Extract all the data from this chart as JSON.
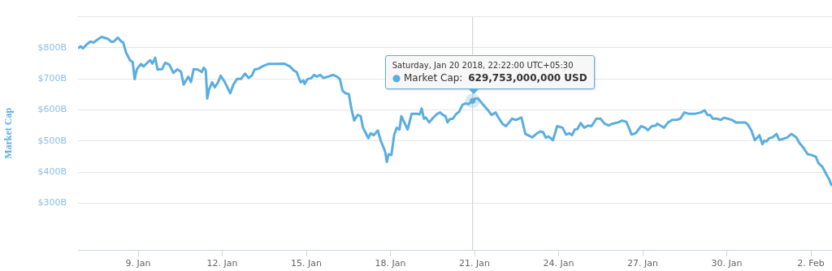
{
  "chart_data": {
    "type": "line",
    "ylabel": "Market Cap",
    "color": "#5aaedf",
    "x": [
      "2018-01-06T20:30",
      "2018-01-06T22:50",
      "2018-01-07T00:40",
      "2018-01-07T03:30",
      "2018-01-07T07:00",
      "2018-01-07T09:45",
      "2018-01-07T12:45",
      "2018-01-07T16:40",
      "2018-01-07T20:10",
      "2018-01-07T22:00",
      "2018-01-08T01:15",
      "2018-01-08T03:10",
      "2018-01-08T06:35",
      "2018-01-08T09:20",
      "2018-01-08T11:15",
      "2018-01-08T13:35",
      "2018-01-08T17:00",
      "2018-01-08T19:20",
      "2018-01-08T21:00",
      "2018-01-08T22:50",
      "2018-01-09T02:20",
      "2018-01-09T04:40",
      "2018-01-09T08:05",
      "2018-01-09T10:25",
      "2018-01-09T12:15",
      "2018-01-09T14:35",
      "2018-01-09T16:40",
      "2018-01-09T20:25",
      "2018-01-09T23:10",
      "2018-01-10T02:40",
      "2018-01-10T06:10",
      "2018-01-10T09:40",
      "2018-01-10T12:40",
      "2018-01-10T14:55",
      "2018-01-10T18:55",
      "2018-01-10T21:15",
      "2018-01-10T23:30",
      "2018-01-11T03:00",
      "2018-01-11T06:30",
      "2018-01-11T08:10",
      "2018-01-11T09:55",
      "2018-01-11T11:10",
      "2018-01-11T12:45",
      "2018-01-11T15:20",
      "2018-01-11T17:35",
      "2018-01-11T20:25",
      "2018-01-11T22:40",
      "2018-01-12T02:10",
      "2018-01-12T06:50",
      "2018-01-12T09:35",
      "2018-01-12T12:40",
      "2018-01-12T16:05",
      "2018-01-12T19:35",
      "2018-01-12T22:35",
      "2018-01-13T01:25",
      "2018-01-13T03:40",
      "2018-01-13T07:10",
      "2018-01-13T10:40",
      "2018-01-13T15:20",
      "2018-01-13T20:00",
      "2018-01-14T05:00",
      "2018-01-14T09:55",
      "2018-01-14T13:20",
      "2018-01-14T15:40",
      "2018-01-14T19:10",
      "2018-01-14T21:25",
      "2018-01-14T22:35",
      "2018-01-15T00:55",
      "2018-01-15T04:25",
      "2018-01-15T06:40",
      "2018-01-15T09:00",
      "2018-01-15T11:50",
      "2018-01-15T14:50",
      "2018-01-15T18:20",
      "2018-01-15T22:55",
      "2018-01-16T02:25",
      "2018-01-16T04:45",
      "2018-01-16T07:05",
      "2018-01-16T09:25",
      "2018-01-16T12:25",
      "2018-01-16T14:45",
      "2018-01-16T17:00",
      "2018-01-16T19:50",
      "2018-01-16T22:35",
      "2018-01-17T00:30",
      "2018-01-17T02:45",
      "2018-01-17T05:05",
      "2018-01-17T07:00",
      "2018-01-17T09:45",
      "2018-01-17T13:15",
      "2018-01-17T15:35",
      "2018-01-17T17:50",
      "2018-01-17T19:30",
      "2018-01-17T20:55",
      "2018-01-17T22:30",
      "2018-01-18T00:50",
      "2018-01-18T03:10",
      "2018-01-18T05:25",
      "2018-01-18T07:45",
      "2018-01-18T09:20",
      "2018-01-18T12:25",
      "2018-01-18T14:45",
      "2018-01-18T18:10",
      "2018-01-18T22:50",
      "2018-01-19T01:10",
      "2018-01-19T02:45",
      "2018-01-19T04:40",
      "2018-01-19T06:15",
      "2018-01-19T09:15",
      "2018-01-19T12:45",
      "2018-01-19T16:15",
      "2018-01-19T18:35",
      "2018-01-19T20:50",
      "2018-01-19T23:10",
      "2018-01-20T00:50",
      "2018-01-20T02:40",
      "2018-01-20T05:25",
      "2018-01-20T08:30",
      "2018-01-20T10:45",
      "2018-01-20T13:45",
      "2018-01-20T16:10",
      "2018-01-20T18:55",
      "2018-01-20T22:22",
      "2018-01-21T00:30",
      "2018-01-21T03:00",
      "2018-01-21T06:30",
      "2018-01-21T11:10",
      "2018-01-21T14:35",
      "2018-01-21T18:05",
      "2018-01-21T20:25",
      "2018-01-21T23:50",
      "2018-01-22T02:55",
      "2018-01-22T05:40",
      "2018-01-22T08:00",
      "2018-01-22T11:30",
      "2018-01-22T16:10",
      "2018-01-22T19:35",
      "2018-01-22T21:55",
      "2018-01-23T01:25",
      "2018-01-23T04:50",
      "2018-01-23T08:20",
      "2018-01-23T10:40",
      "2018-01-23T13:00",
      "2018-01-23T15:20",
      "2018-01-23T19:10",
      "2018-01-23T22:45",
      "2018-01-24T03:20",
      "2018-01-24T06:25",
      "2018-01-24T09:10",
      "2018-01-24T11:30",
      "2018-01-24T13:50",
      "2018-01-24T16:10",
      "2018-01-24T18:55",
      "2018-01-24T21:55",
      "2018-01-25T01:25",
      "2018-01-25T04:10",
      "2018-01-25T08:20",
      "2018-01-25T11:50",
      "2018-01-25T15:20",
      "2018-01-25T18:50",
      "2018-01-25T22:15",
      "2018-01-26T02:55",
      "2018-01-26T06:25",
      "2018-01-26T09:55",
      "2018-01-26T12:10",
      "2018-01-26T14:30",
      "2018-01-26T17:55",
      "2018-01-26T22:35",
      "2018-01-27T02:05",
      "2018-01-27T04:25",
      "2018-01-27T07:50",
      "2018-01-27T11:20",
      "2018-01-27T12:30",
      "2018-01-27T16:00",
      "2018-01-27T18:15",
      "2018-01-27T21:45",
      "2018-01-28T01:15",
      "2018-01-28T04:45",
      "2018-01-28T08:10",
      "2018-01-28T11:40",
      "2018-01-28T15:10",
      "2018-01-28T21:00",
      "2018-01-29T01:40",
      "2018-01-29T05:05",
      "2018-01-29T07:25",
      "2018-01-29T09:45",
      "2018-01-29T12:05",
      "2018-01-29T15:30",
      "2018-01-29T19:00",
      "2018-01-29T21:20",
      "2018-01-30T00:50",
      "2018-01-30T04:20",
      "2018-01-30T07:50",
      "2018-01-30T12:25",
      "2018-01-30T15:55",
      "2018-01-30T18:15",
      "2018-01-30T21:00",
      "2018-01-31T00:00",
      "2018-01-31T02:20",
      "2018-01-31T03:55",
      "2018-01-31T06:30",
      "2018-01-31T08:10",
      "2018-01-31T09:55",
      "2018-01-31T12:15",
      "2018-01-31T15:05",
      "2018-01-31T18:35",
      "2018-01-31T20:50",
      "2018-02-01T00:20",
      "2018-02-01T03:50",
      "2018-02-01T07:15",
      "2018-02-01T11:30",
      "2018-02-01T14:15",
      "2018-02-01T17:45",
      "2018-02-01T21:15",
      "2018-02-02T00:40",
      "2018-02-02T04:10",
      "2018-02-02T06:30",
      "2018-02-02T09:55",
      "2018-02-02T13:25",
      "2018-02-02T15:45",
      "2018-02-02T17:50"
    ],
    "values": [
      798,
      805,
      798,
      809,
      820,
      817,
      825,
      835,
      831,
      829,
      819,
      820,
      833,
      821,
      817,
      785,
      760,
      754,
      699,
      731,
      748,
      740,
      753,
      760,
      749,
      768,
      730,
      731,
      752,
      746,
      719,
      731,
      723,
      682,
      707,
      690,
      731,
      730,
      722,
      736,
      727,
      637,
      666,
      689,
      673,
      689,
      710,
      690,
      654,
      682,
      700,
      700,
      717,
      703,
      711,
      730,
      733,
      741,
      748,
      748,
      749,
      740,
      727,
      722,
      689,
      695,
      684,
      699,
      703,
      713,
      707,
      713,
      703,
      707,
      713,
      707,
      699,
      662,
      654,
      651,
      601,
      566,
      584,
      580,
      543,
      527,
      509,
      525,
      519,
      534,
      503,
      482,
      466,
      433,
      458,
      455,
      519,
      543,
      537,
      580,
      556,
      537,
      588,
      588,
      586,
      605,
      572,
      576,
      560,
      576,
      588,
      592,
      584,
      580,
      560,
      570,
      572,
      588,
      594,
      617,
      621,
      619,
      629.753,
      637,
      637,
      621,
      601,
      584,
      592,
      576,
      556,
      548,
      560,
      572,
      568,
      576,
      523,
      519,
      512,
      523,
      531,
      529,
      511,
      515,
      503,
      548,
      543,
      521,
      525,
      519,
      537,
      539,
      558,
      543,
      550,
      548,
      572,
      572,
      556,
      550,
      556,
      560,
      566,
      562,
      543,
      521,
      525,
      548,
      543,
      535,
      548,
      550,
      556,
      548,
      543,
      560,
      568,
      568,
      572,
      592,
      588,
      588,
      592,
      599,
      584,
      584,
      572,
      572,
      568,
      575,
      572,
      568,
      560,
      560,
      560,
      552,
      535,
      503,
      512,
      519,
      490,
      501,
      499,
      509,
      512,
      523,
      504,
      507,
      512,
      523,
      512,
      494,
      478,
      458,
      455,
      450,
      429,
      417,
      392,
      376,
      356
    ],
    "xlim": [
      "2018-01-06T20:30",
      "2018-02-02T18:05"
    ],
    "xticks": [
      {
        "value": "2018-01-09",
        "label": "9. Jan"
      },
      {
        "value": "2018-01-12",
        "label": "12. Jan"
      },
      {
        "value": "2018-01-15",
        "label": "15. Jan"
      },
      {
        "value": "2018-01-18",
        "label": "18. Jan"
      },
      {
        "value": "2018-01-21",
        "label": "21. Jan"
      },
      {
        "value": "2018-01-24",
        "label": "24. Jan"
      },
      {
        "value": "2018-01-27",
        "label": "27. Jan"
      },
      {
        "value": "2018-01-30",
        "label": "30. Jan"
      },
      {
        "value": "2018-02-02",
        "label": "2. Feb"
      }
    ],
    "ylim": [
      150,
      900
    ],
    "yticks": [
      {
        "value": 300,
        "label": "$300B"
      },
      {
        "value": 400,
        "label": "$400B"
      },
      {
        "value": 500,
        "label": "$500B"
      },
      {
        "value": 600,
        "label": "$600B"
      },
      {
        "value": 700,
        "label": "$700B"
      },
      {
        "value": 800,
        "label": "$800B"
      },
      {
        "value": 900,
        "label": null
      }
    ],
    "grid": "y",
    "ref_lines": [
      {
        "axis": "x",
        "value": "2018-01-20T22:22",
        "color": "#cccccc"
      }
    ],
    "annotations": [
      "Saturday, Jan 20 2018, 22:22:00 UTC+05:30",
      "● Market Cap: 629,753,000,000 USD"
    ]
  }
}
